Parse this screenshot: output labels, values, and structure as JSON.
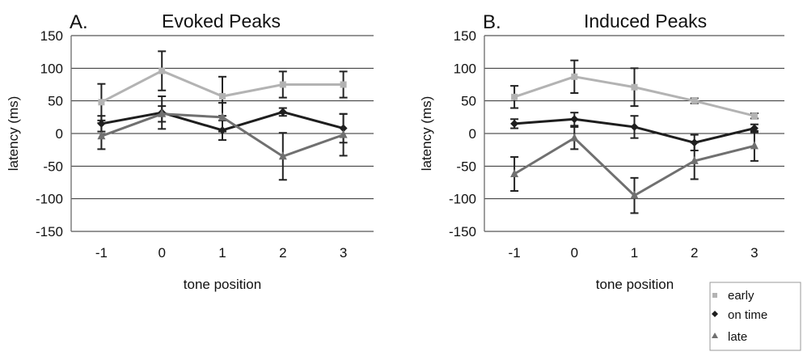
{
  "chart_data": [
    {
      "type": "line",
      "panel_label": "A.",
      "title": "Evoked Peaks",
      "xlabel": "tone position",
      "ylabel": "latency (ms)",
      "categories": [
        "-1",
        "0",
        "1",
        "2",
        "3"
      ],
      "yticks": [
        "150",
        "100",
        "50",
        "0",
        "-50",
        "-100",
        "-150"
      ],
      "ylim": [
        -150,
        150
      ],
      "grid": true,
      "series": [
        {
          "name": "early",
          "color": "#b3b3b3",
          "marker": "square",
          "values": [
            48,
            96,
            57,
            75,
            75
          ],
          "errors": [
            28,
            30,
            30,
            20,
            20
          ]
        },
        {
          "name": "on time",
          "color": "#1e1e1e",
          "marker": "diamond",
          "values": [
            15,
            32,
            5,
            33,
            8
          ],
          "errors": [
            12,
            25,
            15,
            6,
            22
          ]
        },
        {
          "name": "late",
          "color": "#707070",
          "marker": "triangle",
          "values": [
            -4,
            30,
            25,
            -35,
            -2
          ],
          "errors": [
            20,
            12,
            22,
            36,
            32
          ]
        }
      ]
    },
    {
      "type": "line",
      "panel_label": "B.",
      "title": "Induced Peaks",
      "xlabel": "tone position",
      "ylabel": "latency (ms)",
      "categories": [
        "-1",
        "0",
        "1",
        "2",
        "3"
      ],
      "yticks": [
        "150",
        "100",
        "50",
        "0",
        "-50",
        "-100",
        "-150"
      ],
      "ylim": [
        -150,
        150
      ],
      "grid": true,
      "series": [
        {
          "name": "early",
          "color": "#b3b3b3",
          "marker": "square",
          "values": [
            56,
            87,
            71,
            50,
            27
          ],
          "errors": [
            17,
            25,
            29,
            4,
            4
          ]
        },
        {
          "name": "on time",
          "color": "#1e1e1e",
          "marker": "diamond",
          "values": [
            15,
            22,
            10,
            -14,
            8
          ],
          "errors": [
            7,
            10,
            17,
            12,
            6
          ]
        },
        {
          "name": "late",
          "color": "#707070",
          "marker": "triangle",
          "values": [
            -62,
            -7,
            -95,
            -42,
            -19
          ],
          "errors": [
            26,
            17,
            27,
            28,
            23
          ]
        }
      ]
    }
  ],
  "legend": {
    "position": "bottom-right",
    "entries": [
      "early",
      "on time",
      "late"
    ]
  }
}
